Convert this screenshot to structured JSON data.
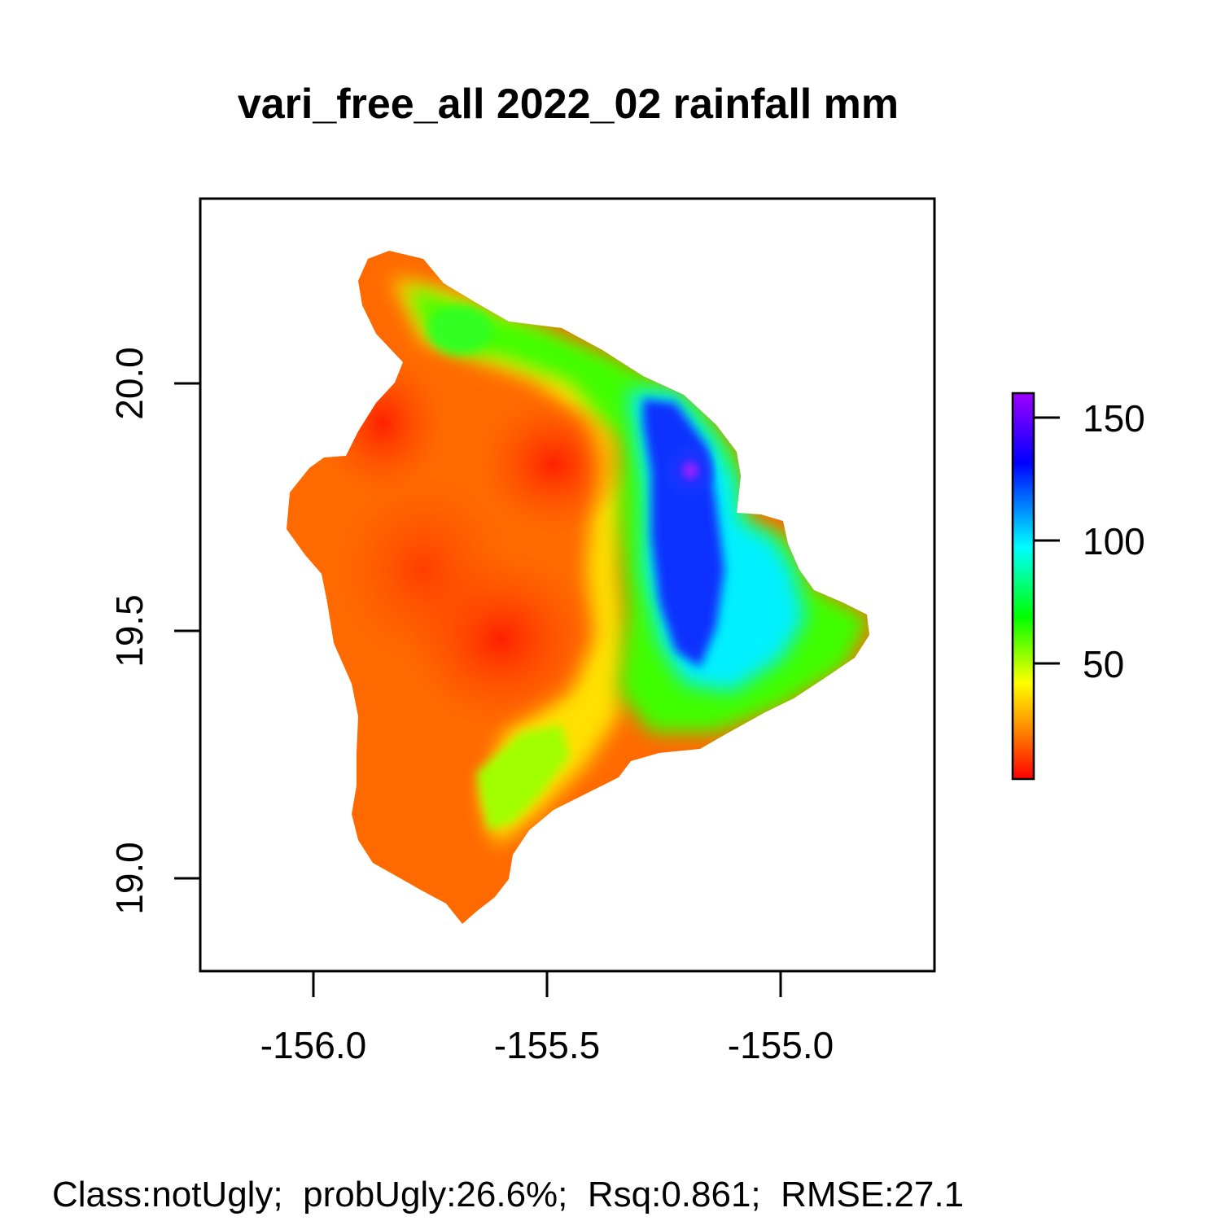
{
  "title": "vari_free_all 2022_02 rainfall mm",
  "footer": "Class:notUgly;  probUgly:26.6%;  Rsq:0.861;  RMSE:27.1",
  "map": {
    "x_ticks": [
      {
        "value": -156.0,
        "label": "-156.0"
      },
      {
        "value": -155.5,
        "label": "-155.5"
      },
      {
        "value": -155.0,
        "label": "-155.0"
      }
    ],
    "y_ticks": [
      {
        "value": 20.0,
        "label": "20.0"
      },
      {
        "value": 19.5,
        "label": "19.5"
      },
      {
        "value": 19.0,
        "label": "19.0"
      }
    ],
    "xlim": [
      -156.24,
      -154.67
    ],
    "ylim": [
      18.81,
      20.38
    ],
    "background_color": "#ffffff"
  },
  "legend": {
    "ticks": [
      {
        "value": 50,
        "label": "50"
      },
      {
        "value": 100,
        "label": "100"
      },
      {
        "value": 150,
        "label": "150"
      }
    ],
    "range": [
      1,
      158
    ],
    "colors": [
      "#ff0000",
      "#ff8000",
      "#ffff00",
      "#00ff00",
      "#00ffff",
      "#0000ff",
      "#a000ff"
    ]
  }
}
